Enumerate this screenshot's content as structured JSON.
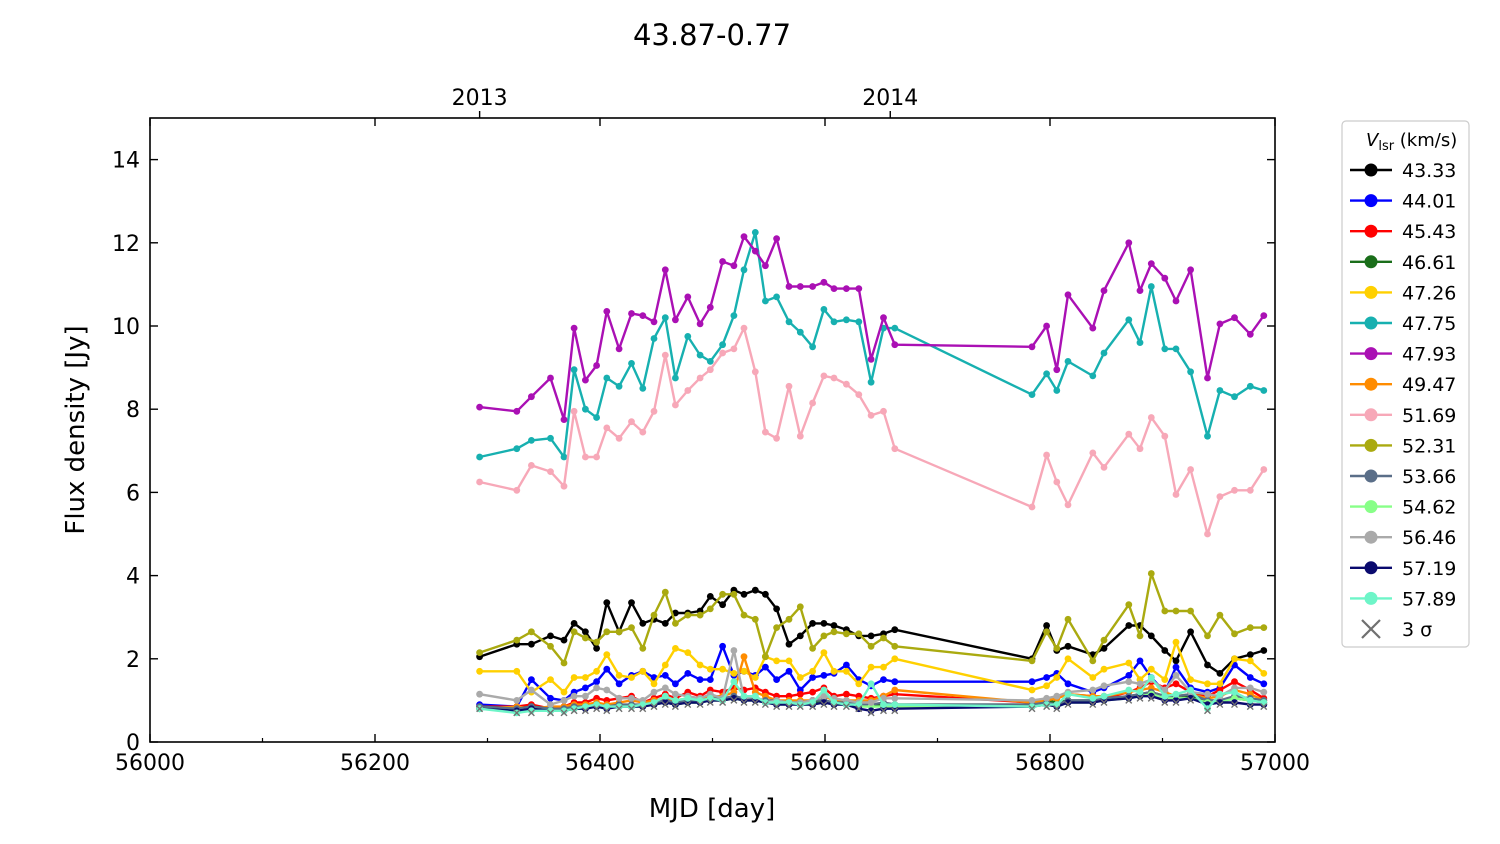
{
  "chart_data": {
    "type": "line",
    "title": "43.87-0.77",
    "xlabel": "MJD [day]",
    "ylabel": "Flux density [Jy]",
    "xlim": [
      56000,
      57000
    ],
    "ylim": [
      0,
      15
    ],
    "x_ticks": [
      "56000",
      "56200",
      "56400",
      "56600",
      "56800",
      "57000"
    ],
    "y_ticks": [
      "0",
      "2",
      "4",
      "6",
      "8",
      "10",
      "12",
      "14"
    ],
    "top_axis": {
      "ticks": [
        {
          "label": "2013",
          "mjd": 56293
        },
        {
          "label": "2014",
          "mjd": 56658
        }
      ]
    },
    "grid": false,
    "legend": {
      "placement": "outside-right",
      "title_symbol": "V",
      "title_sub": "lsr",
      "title_unit": " (km/s)",
      "noise_label": "3 σ"
    },
    "x": [
      56293,
      56326,
      56339,
      56356,
      56368,
      56377,
      56387,
      56397,
      56406,
      56417,
      56428,
      56438,
      56448,
      56458,
      56467,
      56478,
      56489,
      56498,
      56509,
      56519,
      56528,
      56538,
      56547,
      56557,
      56568,
      56578,
      56589,
      56599,
      56608,
      56619,
      56630,
      56641,
      56652,
      56662,
      56784,
      56797,
      56806,
      56816,
      56838,
      56848,
      56870,
      56880,
      56890,
      56902,
      56912,
      56925,
      56940,
      56951,
      56964,
      56978,
      56990
    ],
    "series": [
      {
        "name": "43.33",
        "color": "#000000",
        "values": [
          2.05,
          2.35,
          2.35,
          2.55,
          2.45,
          2.85,
          2.65,
          2.25,
          3.35,
          2.65,
          3.35,
          2.85,
          2.95,
          2.85,
          3.1,
          3.1,
          3.15,
          3.5,
          3.3,
          3.65,
          3.55,
          3.65,
          3.55,
          3.2,
          2.35,
          2.55,
          2.85,
          2.85,
          2.8,
          2.7,
          2.55,
          2.55,
          2.6,
          2.7,
          2.0,
          2.8,
          2.2,
          2.3,
          2.1,
          2.25,
          2.8,
          2.8,
          2.55,
          2.2,
          1.95,
          2.65,
          1.85,
          1.65,
          2.0,
          2.1,
          2.2
        ]
      },
      {
        "name": "44.01",
        "color": "#0000ff",
        "values": [
          0.9,
          0.85,
          1.5,
          1.05,
          1.0,
          1.2,
          1.3,
          1.45,
          1.75,
          1.4,
          1.6,
          1.7,
          1.55,
          1.6,
          1.4,
          1.65,
          1.5,
          1.5,
          2.3,
          1.6,
          1.7,
          1.6,
          1.8,
          1.5,
          1.7,
          1.25,
          1.55,
          1.6,
          1.65,
          1.85,
          1.5,
          1.35,
          1.5,
          1.45,
          1.45,
          1.55,
          1.65,
          1.4,
          1.2,
          1.3,
          1.6,
          1.95,
          1.55,
          1.2,
          1.8,
          1.3,
          1.2,
          1.3,
          1.85,
          1.55,
          1.4
        ]
      },
      {
        "name": "45.43",
        "color": "#ff0000",
        "values": [
          0.85,
          0.85,
          0.9,
          0.8,
          0.85,
          0.95,
          0.95,
          1.05,
          1.0,
          1.05,
          1.1,
          0.95,
          1.05,
          1.15,
          1.05,
          1.2,
          1.1,
          1.25,
          1.2,
          1.3,
          1.25,
          1.3,
          1.2,
          1.1,
          1.1,
          1.15,
          1.2,
          1.3,
          1.1,
          1.15,
          1.1,
          1.05,
          1.1,
          1.15,
          0.95,
          1.0,
          1.05,
          1.15,
          1.1,
          1.05,
          1.2,
          1.3,
          1.45,
          1.3,
          1.4,
          1.2,
          1.1,
          1.25,
          1.45,
          1.25,
          1.05
        ]
      },
      {
        "name": "46.61",
        "color": "#1a6e1a",
        "values": [
          0.85,
          0.8,
          0.85,
          0.8,
          0.8,
          0.85,
          0.85,
          0.9,
          0.85,
          0.9,
          0.85,
          0.9,
          0.9,
          0.95,
          0.9,
          0.95,
          0.95,
          1.0,
          1.0,
          1.05,
          1.0,
          1.0,
          0.95,
          0.95,
          0.95,
          0.95,
          0.95,
          1.0,
          0.95,
          0.95,
          0.9,
          0.9,
          0.9,
          0.9,
          0.9,
          1.0,
          0.95,
          1.0,
          1.0,
          1.0,
          1.1,
          1.15,
          1.2,
          1.1,
          1.1,
          1.1,
          1.0,
          1.0,
          1.05,
          1.0,
          0.95
        ]
      },
      {
        "name": "47.26",
        "color": "#ffd000",
        "values": [
          1.7,
          1.7,
          1.2,
          1.5,
          1.2,
          1.55,
          1.55,
          1.7,
          2.1,
          1.6,
          1.55,
          1.7,
          1.4,
          1.85,
          2.25,
          2.15,
          1.85,
          1.75,
          1.75,
          1.65,
          1.7,
          1.55,
          2.05,
          1.95,
          1.95,
          1.55,
          1.7,
          2.15,
          1.7,
          1.7,
          1.4,
          1.8,
          1.8,
          2.0,
          1.25,
          1.35,
          1.55,
          2.0,
          1.55,
          1.75,
          1.9,
          1.5,
          1.75,
          1.5,
          2.4,
          1.5,
          1.4,
          1.4,
          2.0,
          1.95,
          1.65
        ]
      },
      {
        "name": "47.75",
        "color": "#17b0b0",
        "values": [
          6.85,
          7.05,
          7.25,
          7.3,
          6.85,
          8.95,
          8.0,
          7.8,
          8.75,
          8.55,
          9.1,
          8.5,
          9.7,
          10.2,
          8.75,
          9.75,
          9.3,
          9.15,
          9.55,
          10.25,
          11.35,
          12.25,
          10.6,
          10.7,
          10.1,
          9.85,
          9.5,
          10.4,
          10.1,
          10.15,
          10.1,
          8.65,
          9.95,
          9.95,
          8.35,
          8.85,
          8.45,
          9.15,
          8.8,
          9.35,
          10.15,
          9.6,
          10.95,
          9.45,
          9.45,
          8.9,
          7.35,
          8.45,
          8.3,
          8.55,
          8.45
        ]
      },
      {
        "name": "47.93",
        "color": "#aa10b4",
        "values": [
          8.05,
          7.95,
          8.3,
          8.75,
          7.75,
          9.95,
          8.7,
          9.05,
          10.35,
          9.45,
          10.3,
          10.25,
          10.1,
          11.35,
          10.15,
          10.7,
          10.05,
          10.45,
          11.55,
          11.45,
          12.15,
          11.8,
          11.45,
          12.1,
          10.95,
          10.95,
          10.95,
          11.05,
          10.9,
          10.9,
          10.9,
          9.2,
          10.2,
          9.55,
          9.5,
          10.0,
          8.95,
          10.75,
          9.95,
          10.85,
          12.0,
          10.85,
          11.5,
          11.15,
          10.6,
          11.35,
          8.75,
          10.05,
          10.2,
          9.8,
          10.25
        ]
      },
      {
        "name": "49.47",
        "color": "#ff8c00",
        "values": [
          0.8,
          0.85,
          0.8,
          0.85,
          0.85,
          0.9,
          0.9,
          0.95,
          0.9,
          0.95,
          1.0,
          0.95,
          1.0,
          1.05,
          1.0,
          1.05,
          1.05,
          1.1,
          1.1,
          1.2,
          2.05,
          1.2,
          1.1,
          1.0,
          1.0,
          1.0,
          1.0,
          1.1,
          1.0,
          1.0,
          1.0,
          1.0,
          1.1,
          1.25,
          0.95,
          1.0,
          1.05,
          1.15,
          1.1,
          1.1,
          1.2,
          1.25,
          1.3,
          1.2,
          1.1,
          1.15,
          1.05,
          1.1,
          1.25,
          1.15,
          1.0
        ]
      },
      {
        "name": "51.69",
        "color": "#f7a8b8",
        "values": [
          6.25,
          6.05,
          6.65,
          6.5,
          6.15,
          7.95,
          6.85,
          6.85,
          7.55,
          7.3,
          7.7,
          7.45,
          7.95,
          9.3,
          8.1,
          8.45,
          8.75,
          8.95,
          9.35,
          9.45,
          9.95,
          8.9,
          7.45,
          7.3,
          8.55,
          7.35,
          8.15,
          8.8,
          8.75,
          8.6,
          8.35,
          7.85,
          7.95,
          7.05,
          5.65,
          6.9,
          6.25,
          5.7,
          6.95,
          6.6,
          7.4,
          7.05,
          7.8,
          7.35,
          5.95,
          6.55,
          5.0,
          5.9,
          6.05,
          6.05,
          6.55
        ]
      },
      {
        "name": "52.31",
        "color": "#aaaa10",
        "values": [
          2.15,
          2.45,
          2.65,
          2.3,
          1.9,
          2.65,
          2.5,
          2.4,
          2.65,
          2.65,
          2.75,
          2.25,
          3.05,
          3.6,
          2.85,
          3.05,
          3.05,
          3.2,
          3.55,
          3.55,
          3.05,
          2.95,
          2.05,
          2.75,
          2.95,
          3.25,
          2.25,
          2.55,
          2.65,
          2.6,
          2.6,
          2.3,
          2.5,
          2.3,
          1.95,
          2.65,
          2.25,
          2.95,
          1.95,
          2.45,
          3.3,
          2.55,
          4.05,
          3.15,
          3.15,
          3.15,
          2.55,
          3.05,
          2.6,
          2.75,
          2.75
        ]
      },
      {
        "name": "53.66",
        "color": "#5a6e88",
        "values": [
          0.85,
          0.8,
          0.85,
          0.8,
          0.8,
          0.85,
          0.85,
          0.9,
          0.85,
          0.9,
          0.9,
          0.9,
          0.95,
          1.0,
          0.95,
          1.0,
          1.0,
          1.05,
          1.05,
          1.1,
          1.05,
          1.05,
          1.0,
          1.0,
          0.95,
          0.95,
          1.0,
          1.0,
          0.95,
          0.95,
          0.9,
          0.9,
          0.95,
          0.9,
          0.9,
          0.95,
          0.9,
          1.0,
          1.0,
          1.05,
          1.1,
          1.15,
          1.2,
          1.1,
          1.1,
          1.15,
          1.0,
          1.0,
          1.1,
          1.05,
          1.0
        ]
      },
      {
        "name": "54.62",
        "color": "#88ff88",
        "values": [
          0.8,
          0.75,
          0.8,
          0.75,
          0.75,
          0.8,
          0.8,
          0.85,
          0.8,
          0.85,
          0.85,
          0.85,
          0.9,
          0.95,
          0.9,
          0.95,
          0.95,
          1.0,
          1.0,
          1.05,
          1.0,
          1.0,
          0.95,
          0.9,
          0.9,
          0.9,
          0.9,
          0.95,
          0.9,
          0.9,
          0.85,
          0.85,
          0.85,
          0.85,
          0.85,
          0.9,
          0.85,
          0.95,
          0.95,
          1.0,
          1.05,
          1.1,
          1.15,
          1.05,
          1.05,
          1.05,
          0.95,
          0.95,
          1.05,
          1.0,
          0.95
        ]
      },
      {
        "name": "56.46",
        "color": "#aaaaaa",
        "values": [
          1.15,
          1.0,
          1.25,
          0.9,
          1.0,
          1.1,
          1.1,
          1.3,
          1.25,
          1.05,
          1.05,
          1.0,
          1.2,
          1.3,
          1.15,
          1.1,
          1.05,
          1.15,
          1.05,
          2.2,
          1.05,
          1.1,
          0.95,
          1.0,
          0.95,
          0.95,
          1.0,
          1.1,
          1.05,
          1.0,
          0.95,
          0.95,
          1.05,
          1.05,
          1.0,
          1.05,
          1.1,
          1.2,
          1.25,
          1.35,
          1.45,
          1.4,
          1.5,
          1.25,
          1.6,
          1.2,
          1.15,
          1.1,
          1.3,
          1.3,
          1.2
        ]
      },
      {
        "name": "57.19",
        "color": "#0a0a6e",
        "values": [
          0.8,
          0.75,
          0.8,
          0.75,
          0.75,
          0.8,
          0.8,
          0.85,
          0.8,
          0.85,
          0.85,
          0.85,
          0.9,
          0.95,
          0.9,
          0.95,
          0.95,
          1.0,
          1.0,
          1.05,
          1.0,
          1.0,
          0.95,
          0.9,
          0.9,
          0.9,
          0.9,
          0.95,
          0.9,
          0.9,
          0.8,
          0.75,
          0.8,
          0.8,
          0.85,
          0.9,
          0.85,
          0.95,
          0.95,
          1.0,
          1.05,
          1.1,
          1.1,
          1.0,
          1.0,
          1.05,
          0.9,
          0.95,
          0.95,
          0.9,
          0.9
        ]
      },
      {
        "name": "57.89",
        "color": "#6ef5c8",
        "values": [
          0.8,
          0.7,
          0.75,
          0.75,
          0.75,
          0.8,
          0.85,
          0.9,
          0.85,
          0.85,
          0.85,
          0.9,
          0.95,
          1.1,
          1.0,
          1.05,
          1.0,
          1.05,
          1.0,
          1.45,
          1.1,
          1.1,
          0.95,
          0.95,
          0.95,
          0.9,
          0.95,
          1.25,
          0.95,
          0.9,
          0.9,
          1.4,
          0.9,
          0.9,
          0.85,
          0.9,
          0.9,
          1.15,
          1.05,
          1.1,
          1.25,
          1.2,
          1.55,
          1.1,
          1.15,
          1.25,
          0.8,
          1.15,
          1.2,
          1.0,
          0.95
        ]
      }
    ],
    "noise_3sigma": {
      "color": "#707070",
      "values": [
        0.8,
        0.7,
        0.7,
        0.7,
        0.7,
        0.75,
        0.75,
        0.8,
        0.75,
        0.8,
        0.8,
        0.8,
        0.85,
        0.9,
        0.85,
        0.9,
        0.9,
        0.95,
        0.95,
        1.0,
        0.95,
        0.95,
        0.9,
        0.85,
        0.85,
        0.85,
        0.85,
        0.9,
        0.85,
        0.85,
        0.8,
        0.7,
        0.75,
        0.75,
        0.8,
        0.85,
        0.8,
        0.9,
        0.9,
        0.95,
        1.0,
        1.05,
        1.05,
        0.95,
        0.95,
        1.0,
        0.75,
        0.9,
        0.9,
        0.85,
        0.85
      ]
    }
  }
}
